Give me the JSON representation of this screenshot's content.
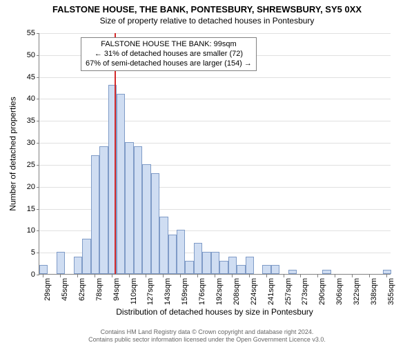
{
  "title": "FALSTONE HOUSE, THE BANK, PONTESBURY, SHREWSBURY, SY5 0XX",
  "subtitle": "Size of property relative to detached houses in Pontesbury",
  "axes": {
    "ylabel": "Number of detached properties",
    "xlabel": "Distribution of detached houses by size in Pontesbury",
    "ylim": [
      0,
      55
    ],
    "ytick_step": 5,
    "yticks": [
      0,
      5,
      10,
      15,
      20,
      25,
      30,
      35,
      40,
      45,
      50,
      55
    ],
    "grid_color": "#e0e0e0",
    "axis_color": "#808080",
    "label_fontsize": 12,
    "tick_fontsize": 11
  },
  "chart": {
    "type": "histogram",
    "bin_width_sqm": 8,
    "bar_fill": "#cfddf2",
    "bar_stroke": "#7f9bc7",
    "background_color": "#ffffff",
    "bins": [
      {
        "label": "29sqm",
        "value": 2
      },
      {
        "label": null,
        "value": 0
      },
      {
        "label": "45sqm",
        "value": 5
      },
      {
        "label": null,
        "value": 0
      },
      {
        "label": "62sqm",
        "value": 4
      },
      {
        "label": null,
        "value": 8
      },
      {
        "label": "78sqm",
        "value": 27
      },
      {
        "label": null,
        "value": 29
      },
      {
        "label": "94sqm",
        "value": 43
      },
      {
        "label": null,
        "value": 41
      },
      {
        "label": "110sqm",
        "value": 30
      },
      {
        "label": null,
        "value": 29
      },
      {
        "label": "127sqm",
        "value": 25
      },
      {
        "label": null,
        "value": 23
      },
      {
        "label": "143sqm",
        "value": 13
      },
      {
        "label": null,
        "value": 9
      },
      {
        "label": "159sqm",
        "value": 10
      },
      {
        "label": null,
        "value": 3
      },
      {
        "label": "176sqm",
        "value": 7
      },
      {
        "label": null,
        "value": 5
      },
      {
        "label": "192sqm",
        "value": 5
      },
      {
        "label": null,
        "value": 3
      },
      {
        "label": "208sqm",
        "value": 4
      },
      {
        "label": null,
        "value": 2
      },
      {
        "label": "224sqm",
        "value": 4
      },
      {
        "label": null,
        "value": 0
      },
      {
        "label": "241sqm",
        "value": 2
      },
      {
        "label": null,
        "value": 2
      },
      {
        "label": "257sqm",
        "value": 0
      },
      {
        "label": null,
        "value": 1
      },
      {
        "label": "273sqm",
        "value": 0
      },
      {
        "label": null,
        "value": 0
      },
      {
        "label": "290sqm",
        "value": 0
      },
      {
        "label": null,
        "value": 1
      },
      {
        "label": "306sqm",
        "value": 0
      },
      {
        "label": null,
        "value": 0
      },
      {
        "label": "322sqm",
        "value": 0
      },
      {
        "label": null,
        "value": 0
      },
      {
        "label": "338sqm",
        "value": 0
      },
      {
        "label": null,
        "value": 0
      },
      {
        "label": "355sqm",
        "value": 1
      }
    ],
    "reference_line": {
      "position_sqm": 99,
      "bin_index": 8.75,
      "color": "#d42a2a",
      "width": 2
    }
  },
  "annotation": {
    "line1": "FALSTONE HOUSE THE BANK: 99sqm",
    "line2": "← 31% of detached houses are smaller (72)",
    "line3": "67% of semi-detached houses are larger (154) →",
    "border_color": "#808080",
    "bg_color": "#ffffff",
    "fontsize": 11
  },
  "footer": {
    "line1": "Contains HM Land Registry data © Crown copyright and database right 2024.",
    "line2": "Contains public sector information licensed under the Open Government Licence v3.0.",
    "color": "#666666",
    "fontsize": 9
  }
}
